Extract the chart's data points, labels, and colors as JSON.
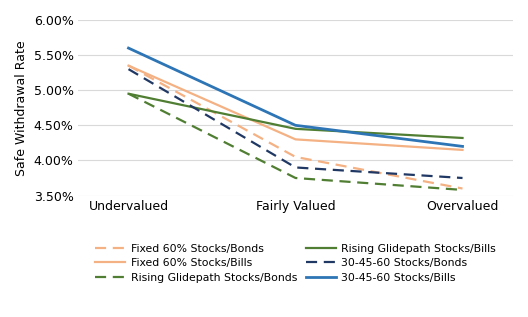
{
  "x_labels": [
    "Undervalued",
    "Fairly Valued",
    "Overvalued"
  ],
  "x_positions": [
    0,
    1,
    2
  ],
  "series": [
    {
      "label": "Fixed 60% Stocks/Bonds",
      "values": [
        0.0535,
        0.0405,
        0.036
      ],
      "color": "#F4B183",
      "linestyle": "dashed",
      "linewidth": 1.6,
      "zorder": 3
    },
    {
      "label": "Fixed 60% Stocks/Bills",
      "values": [
        0.0535,
        0.043,
        0.0415
      ],
      "color": "#F4B183",
      "linestyle": "solid",
      "linewidth": 1.6,
      "zorder": 3
    },
    {
      "label": "Rising Glidepath Stocks/Bonds",
      "values": [
        0.0495,
        0.0375,
        0.0358
      ],
      "color": "#507E32",
      "linestyle": "dashed",
      "linewidth": 1.6,
      "zorder": 3
    },
    {
      "label": "Rising Glidepath Stocks/Bills",
      "values": [
        0.0495,
        0.0445,
        0.0432
      ],
      "color": "#507E32",
      "linestyle": "solid",
      "linewidth": 1.6,
      "zorder": 3
    },
    {
      "label": "30-45-60 Stocks/Bonds",
      "values": [
        0.053,
        0.039,
        0.0375
      ],
      "color": "#203864",
      "linestyle": "dashed",
      "linewidth": 1.6,
      "zorder": 3
    },
    {
      "label": "30-45-60 Stocks/Bills",
      "values": [
        0.056,
        0.045,
        0.042
      ],
      "color": "#2E75B6",
      "linestyle": "solid",
      "linewidth": 2.0,
      "zorder": 4
    }
  ],
  "ylabel": "Safe Withdrawal Rate",
  "ylim": [
    0.035,
    0.06
  ],
  "yticks": [
    0.035,
    0.04,
    0.045,
    0.05,
    0.055,
    0.06
  ],
  "ytick_labels": [
    "3.50%",
    "4.00%",
    "4.50%",
    "5.00%",
    "5.50%",
    "6.00%"
  ],
  "grid_color": "#D9D9D9",
  "background_color": "#FFFFFF",
  "figsize": [
    5.28,
    3.17
  ],
  "dpi": 100
}
